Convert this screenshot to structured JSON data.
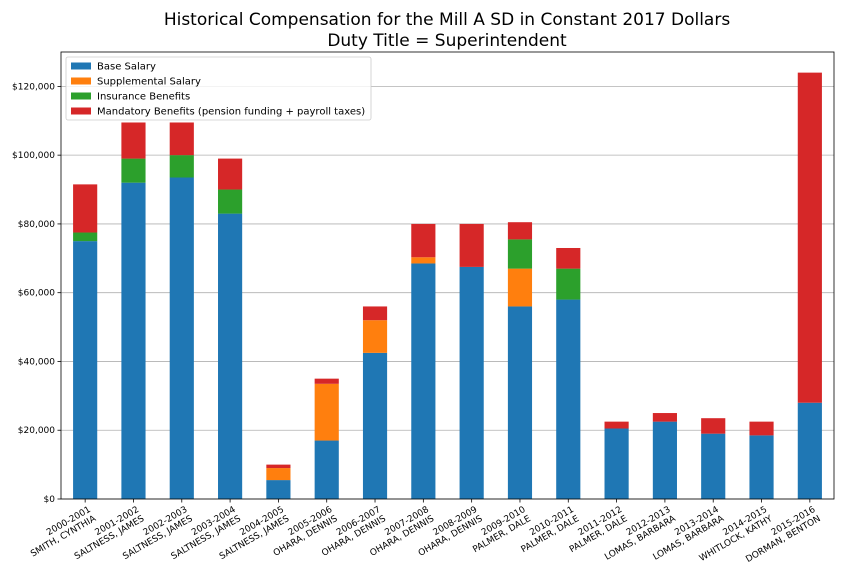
{
  "chart_data": {
    "type": "bar",
    "stacked": true,
    "title": "Historical Compensation for the Mill A SD in Constant 2017 Dollars",
    "subtitle": "Duty Title = Superintendent",
    "xlabel": "",
    "ylabel": "",
    "ylim": [
      0,
      130000
    ],
    "yticks": [
      0,
      20000,
      40000,
      60000,
      80000,
      100000,
      120000
    ],
    "ytick_labels": [
      "$0",
      "$20,000",
      "$40,000",
      "$60,000",
      "$80,000",
      "$100,000",
      "$120,000"
    ],
    "grid": "horizontal",
    "legend_position": "top-left",
    "categories": [
      [
        "2000-2001",
        "SMITH, CYNTHIA"
      ],
      [
        "2001-2002",
        "SALTNESS, JAMES"
      ],
      [
        "2002-2003",
        "SALTNESS, JAMES"
      ],
      [
        "2003-2004",
        "SALTNESS, JAMES"
      ],
      [
        "2004-2005",
        "SALTNESS, JAMES"
      ],
      [
        "2005-2006",
        "OHARA, DENNIS"
      ],
      [
        "2006-2007",
        "OHARA, DENNIS"
      ],
      [
        "2007-2008",
        "OHARA, DENNIS"
      ],
      [
        "2008-2009",
        "OHARA, DENNIS"
      ],
      [
        "2009-2010",
        "PALMER, DALE"
      ],
      [
        "2010-2011",
        "PALMER, DALE"
      ],
      [
        "2011-2012",
        "PALMER, DALE"
      ],
      [
        "2012-2013",
        "LOMAS, BARBARA"
      ],
      [
        "2013-2014",
        "LOMAS, BARBARA"
      ],
      [
        "2014-2015",
        "WHITLOCK, KATHY"
      ],
      [
        "2015-2016",
        "DORMAN, BENTON"
      ]
    ],
    "series": [
      {
        "name": "Base Salary",
        "color": "#1f77b4",
        "values": [
          75000,
          92000,
          93500,
          83000,
          5500,
          17000,
          42500,
          68500,
          67500,
          56000,
          58000,
          20500,
          22500,
          19000,
          18500,
          28000
        ]
      },
      {
        "name": "Supplemental Salary",
        "color": "#ff7f0e",
        "values": [
          0,
          0,
          0,
          0,
          3500,
          16500,
          9500,
          1800,
          0,
          11000,
          0,
          0,
          0,
          0,
          0,
          0
        ]
      },
      {
        "name": "Insurance Benefits",
        "color": "#2ca02c",
        "values": [
          2500,
          7000,
          6500,
          7000,
          0,
          0,
          0,
          0,
          0,
          8500,
          9000,
          0,
          0,
          0,
          0,
          0
        ]
      },
      {
        "name": "Mandatory Benefits (pension funding + payroll taxes)",
        "color": "#d62728",
        "values": [
          14000,
          10500,
          9500,
          9000,
          1000,
          1500,
          4000,
          9700,
          12500,
          5000,
          6000,
          2000,
          2500,
          4500,
          4000,
          96000
        ]
      }
    ]
  }
}
